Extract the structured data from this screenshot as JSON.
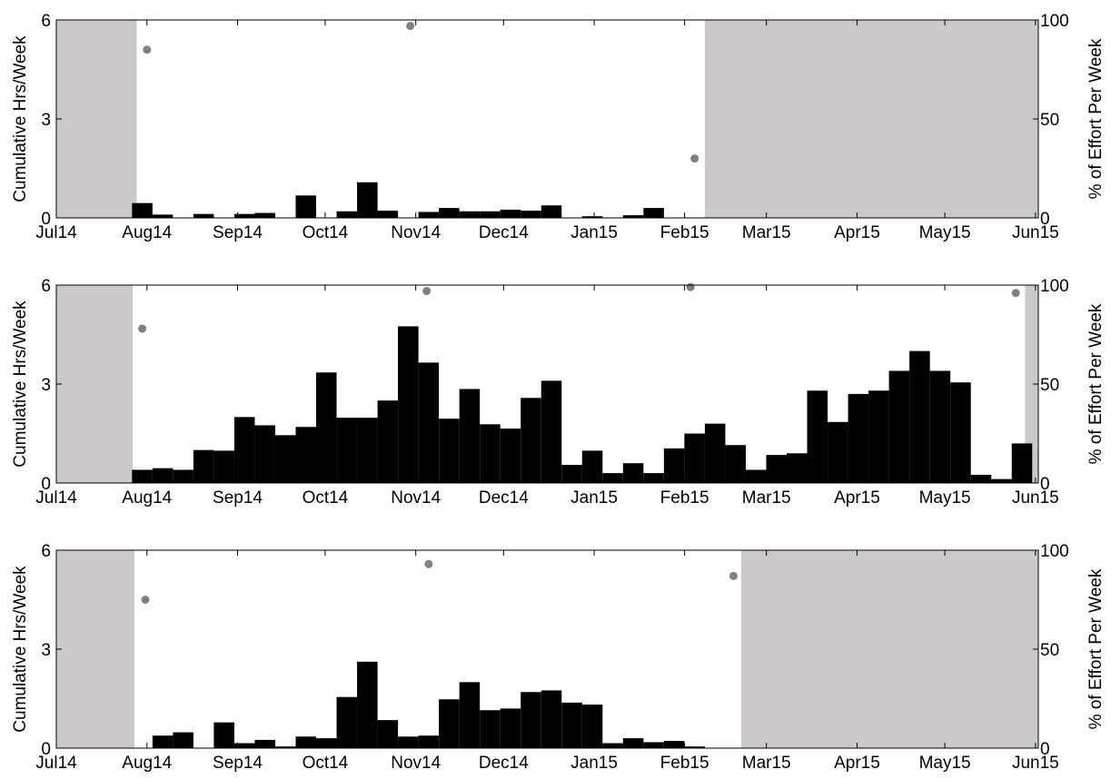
{
  "chart_data": [
    {
      "type": "bar",
      "ylabel": "Cumulative Hrs/Week",
      "y2label": "% of Effort Per Week",
      "color": "#000000",
      "x": [
        3.7,
        4.7,
        5.7,
        6.7,
        7.7,
        8.7,
        9.7,
        10.7,
        11.7,
        12.7,
        13.7,
        14.7,
        15.7,
        16.7,
        17.7,
        18.7,
        19.7,
        20.7,
        21.7,
        22.7,
        23.7,
        24.7,
        25.7,
        26.7,
        27.7,
        28.7,
        29.7,
        30.7,
        31.7,
        32.7,
        33.7,
        34.7,
        35.7,
        36.7,
        37.7,
        38.7,
        39.7,
        40.7,
        41.7,
        42.7,
        43.7,
        44.7,
        45.7,
        46.7
      ],
      "values": [
        0.45,
        0.1,
        0,
        0.12,
        0,
        0.12,
        0.15,
        0,
        0.68,
        0,
        0.2,
        1.08,
        0.22,
        0,
        0.18,
        0.3,
        0.2,
        0.2,
        0.25,
        0.22,
        0.38,
        0,
        0.05,
        0,
        0.08,
        0.3,
        0,
        0,
        null,
        null,
        null,
        null,
        null,
        null,
        null,
        null,
        null,
        null,
        null,
        null,
        null,
        null,
        null,
        null
      ],
      "effort": {
        "axis": "y2",
        "color": "#808080",
        "x": [
          4.43,
          17.3,
          31.2
        ],
        "values": [
          85,
          97,
          30
        ]
      },
      "no_effort": [
        [
          0,
          3.93
        ],
        [
          31.7,
          48
        ]
      ],
      "no_effort_color": "#cdc9c9",
      "xlim": [
        0,
        48
      ],
      "xticks": [
        {
          "value": 0,
          "label": "Jul14"
        },
        {
          "value": 4.43,
          "label": "Aug14"
        },
        {
          "value": 8.86,
          "label": "Sep14"
        },
        {
          "value": 13.14,
          "label": "Oct14"
        },
        {
          "value": 17.57,
          "label": "Nov14"
        },
        {
          "value": 21.86,
          "label": "Dec14"
        },
        {
          "value": 26.29,
          "label": "Jan15"
        },
        {
          "value": 30.71,
          "label": "Feb15"
        },
        {
          "value": 34.71,
          "label": "Mar15"
        },
        {
          "value": 39.14,
          "label": "Apr15"
        },
        {
          "value": 43.43,
          "label": "May15"
        },
        {
          "value": 47.86,
          "label": "Jun15"
        }
      ],
      "ylim": [
        0,
        6
      ],
      "yticks": [
        0,
        3,
        6
      ],
      "y2lim": [
        0,
        100
      ],
      "y2ticks": [
        0,
        50,
        100
      ]
    },
    {
      "type": "bar",
      "ylabel": "Cumulative Hrs/Week",
      "y2label": "% of Effort Per Week",
      "color": "#000000",
      "x": [
        3.7,
        4.7,
        5.7,
        6.7,
        7.7,
        8.7,
        9.7,
        10.7,
        11.7,
        12.7,
        13.7,
        14.7,
        15.7,
        16.7,
        17.7,
        18.7,
        19.7,
        20.7,
        21.7,
        22.7,
        23.7,
        24.7,
        25.7,
        26.7,
        27.7,
        28.7,
        29.7,
        30.7,
        31.7,
        32.7,
        33.7,
        34.7,
        35.7,
        36.7,
        37.7,
        38.7,
        39.7,
        40.7,
        41.7,
        42.7,
        43.7,
        44.7,
        45.7,
        46.7
      ],
      "values": [
        0.4,
        0.45,
        0.4,
        1.0,
        0.98,
        2.0,
        1.75,
        1.45,
        1.7,
        3.35,
        1.98,
        1.98,
        2.5,
        4.75,
        3.65,
        1.95,
        2.85,
        1.78,
        1.65,
        2.58,
        3.1,
        0.55,
        0.98,
        0.3,
        0.6,
        0.3,
        1.05,
        1.5,
        1.8,
        1.15,
        0.4,
        0.85,
        0.9,
        2.8,
        1.85,
        2.7,
        2.8,
        3.4,
        4.0,
        3.4,
        3.05,
        0.25,
        0.12,
        1.2
      ],
      "effort": {
        "axis": "y2",
        "color": "#808080",
        "x": [
          4.2,
          18.1,
          31.0,
          46.9
        ],
        "values": [
          78,
          97,
          99,
          96
        ]
      },
      "no_effort": [
        [
          0,
          3.73
        ],
        [
          47.35,
          48
        ]
      ],
      "no_effort_color": "#cdc9c9",
      "xlim": [
        0,
        48
      ],
      "xticks": [
        {
          "value": 0,
          "label": "Jul14"
        },
        {
          "value": 4.43,
          "label": "Aug14"
        },
        {
          "value": 8.86,
          "label": "Sep14"
        },
        {
          "value": 13.14,
          "label": "Oct14"
        },
        {
          "value": 17.57,
          "label": "Nov14"
        },
        {
          "value": 21.86,
          "label": "Dec14"
        },
        {
          "value": 26.29,
          "label": "Jan15"
        },
        {
          "value": 30.71,
          "label": "Feb15"
        },
        {
          "value": 34.71,
          "label": "Mar15"
        },
        {
          "value": 39.14,
          "label": "Apr15"
        },
        {
          "value": 43.43,
          "label": "May15"
        },
        {
          "value": 47.86,
          "label": "Jun15"
        }
      ],
      "ylim": [
        0,
        6
      ],
      "yticks": [
        0,
        3,
        6
      ],
      "y2lim": [
        0,
        100
      ],
      "y2ticks": [
        0,
        50,
        100
      ]
    },
    {
      "type": "bar",
      "ylabel": "Cumulative Hrs/Week",
      "y2label": "% of Effort Per Week",
      "color": "#000000",
      "x": [
        3.7,
        4.7,
        5.7,
        6.7,
        7.7,
        8.7,
        9.7,
        10.7,
        11.7,
        12.7,
        13.7,
        14.7,
        15.7,
        16.7,
        17.7,
        18.7,
        19.7,
        20.7,
        21.7,
        22.7,
        23.7,
        24.7,
        25.7,
        26.7,
        27.7,
        28.7,
        29.7,
        30.7,
        31.7,
        32.7,
        33.7,
        34.7,
        35.7,
        36.7,
        37.7,
        38.7,
        39.7,
        40.7,
        41.7,
        42.7,
        43.7,
        44.7,
        45.7,
        46.7
      ],
      "values": [
        0,
        0.38,
        0.48,
        0,
        0.78,
        0.15,
        0.25,
        0.05,
        0.35,
        0.3,
        1.55,
        2.62,
        0.85,
        0.35,
        0.38,
        1.48,
        2.0,
        1.15,
        1.2,
        1.7,
        1.75,
        1.38,
        1.32,
        0.15,
        0.3,
        0.18,
        0.22,
        0.05,
        0,
        0,
        null,
        null,
        null,
        null,
        null,
        null,
        null,
        null,
        null,
        null,
        null,
        null,
        null,
        null
      ],
      "effort": {
        "axis": "y2",
        "color": "#808080",
        "x": [
          4.35,
          18.2,
          33.1
        ],
        "values": [
          75,
          93,
          87
        ]
      },
      "no_effort": [
        [
          0,
          3.82
        ],
        [
          33.48,
          48
        ]
      ],
      "no_effort_color": "#cdc9c9",
      "xlim": [
        0,
        48
      ],
      "xticks": [
        {
          "value": 0,
          "label": "Jul14"
        },
        {
          "value": 4.43,
          "label": "Aug14"
        },
        {
          "value": 8.86,
          "label": "Sep14"
        },
        {
          "value": 13.14,
          "label": "Oct14"
        },
        {
          "value": 17.57,
          "label": "Nov14"
        },
        {
          "value": 21.86,
          "label": "Dec14"
        },
        {
          "value": 26.29,
          "label": "Jan15"
        },
        {
          "value": 30.71,
          "label": "Feb15"
        },
        {
          "value": 34.71,
          "label": "Mar15"
        },
        {
          "value": 39.14,
          "label": "Apr15"
        },
        {
          "value": 43.43,
          "label": "May15"
        },
        {
          "value": 47.86,
          "label": "Jun15"
        }
      ],
      "ylim": [
        0,
        6
      ],
      "yticks": [
        0,
        3,
        6
      ],
      "y2lim": [
        0,
        100
      ],
      "y2ticks": [
        0,
        50,
        100
      ]
    }
  ]
}
